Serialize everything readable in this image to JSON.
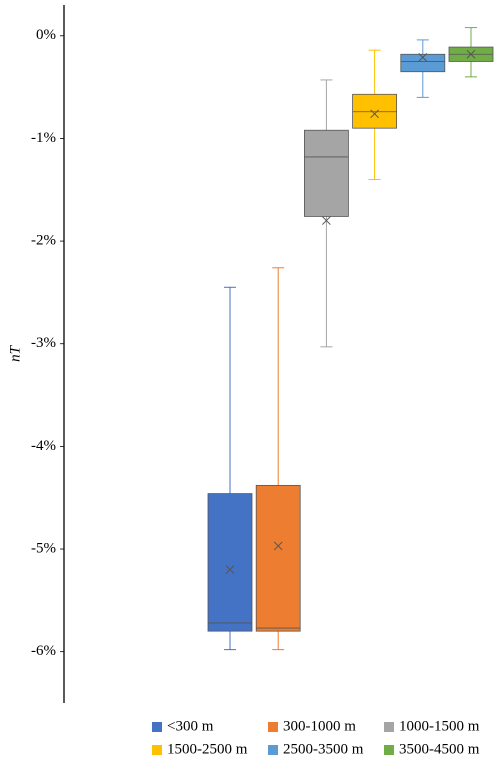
{
  "chart_data": {
    "type": "box",
    "y_label": "nT",
    "ylim": [
      -6.5,
      0.3
    ],
    "yticks": [
      {
        "value": 0,
        "label": "0%"
      },
      {
        "value": -1,
        "label": "-1%"
      },
      {
        "value": -2,
        "label": "-2%"
      },
      {
        "value": -3,
        "label": "-3%"
      },
      {
        "value": -4,
        "label": "-4%"
      },
      {
        "value": -5,
        "label": "-5%"
      },
      {
        "value": -6,
        "label": "-6%"
      }
    ],
    "series": [
      {
        "name": "<300 m",
        "color": "#4472c4",
        "min": -5.98,
        "q1": -5.8,
        "median": -5.72,
        "q3": -4.46,
        "max": -2.45,
        "mean": -5.2
      },
      {
        "name": "300-1000 m",
        "color": "#ed7d31",
        "min": -5.98,
        "q1": -5.8,
        "median": -5.77,
        "q3": -4.38,
        "max": -2.26,
        "mean": -4.97
      },
      {
        "name": "1000-1500 m",
        "color": "#a5a5a5",
        "min": -3.03,
        "q1": -1.76,
        "median": -1.18,
        "q3": -0.92,
        "max": -0.43,
        "mean": -1.8
      },
      {
        "name": "1500-2500 m",
        "color": "#ffc000",
        "min": -1.4,
        "q1": -0.9,
        "median": -0.74,
        "q3": -0.57,
        "max": -0.14,
        "mean": -0.76
      },
      {
        "name": "2500-3500 m",
        "color": "#5b9bd5",
        "min": -0.6,
        "q1": -0.35,
        "median": -0.25,
        "q3": -0.18,
        "max": -0.04,
        "mean": -0.21
      },
      {
        "name": "3500-4500 m",
        "color": "#70ad47",
        "min": -0.4,
        "q1": -0.25,
        "median": -0.18,
        "q3": -0.11,
        "max": 0.08,
        "mean": -0.18
      }
    ]
  }
}
